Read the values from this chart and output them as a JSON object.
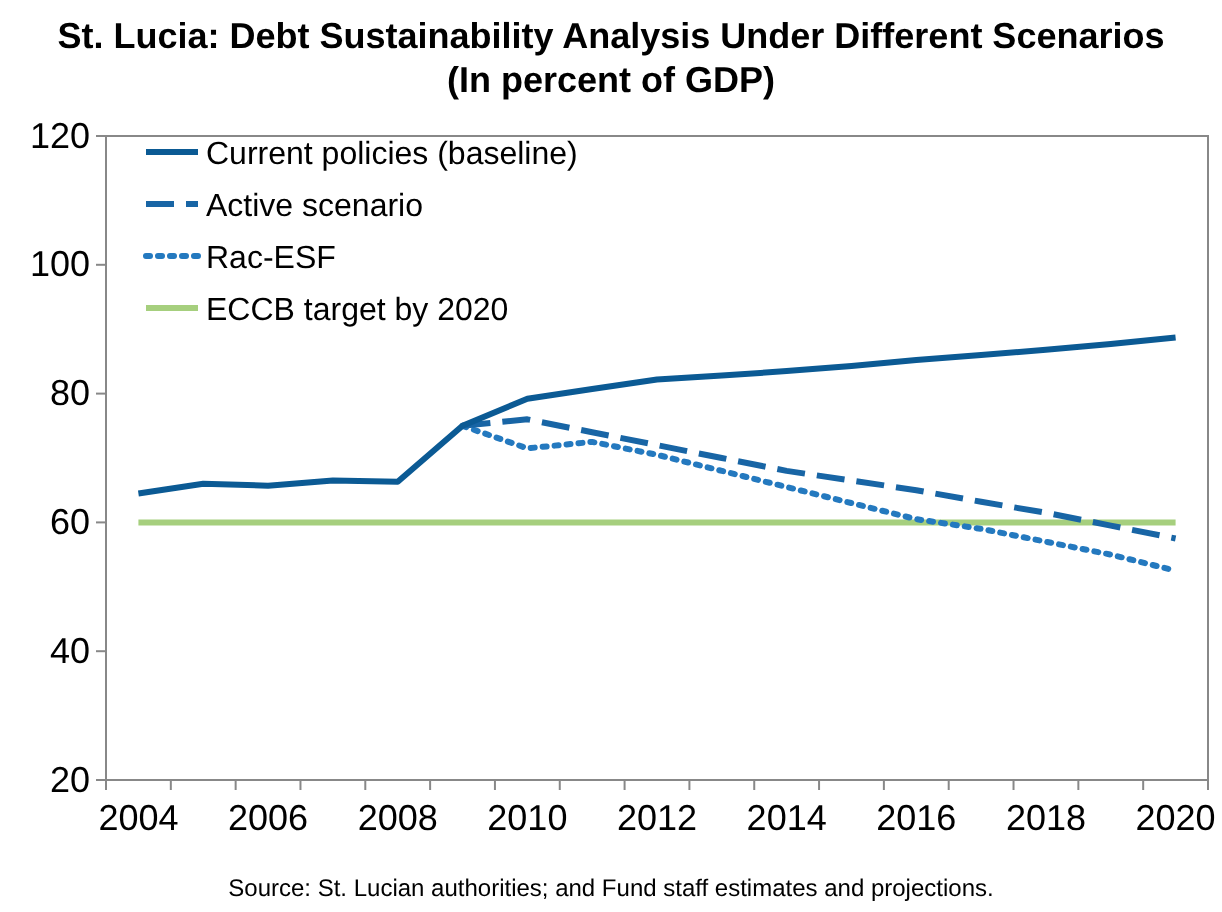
{
  "chart_data": {
    "type": "line",
    "title": "St. Lucia: Debt Sustainability Analysis Under Different Scenarios",
    "subtitle": "(In percent of GDP)",
    "categories": [
      "2004",
      null,
      "2006",
      null,
      "2008",
      null,
      "2010",
      null,
      "2012",
      null,
      "2014",
      null,
      "2016",
      null,
      "2018",
      null,
      "2020"
    ],
    "series": [
      {
        "name": "Current policies (baseline)",
        "color": "#0b5a94",
        "line_style": "solid",
        "values": [
          64.5,
          66,
          65.7,
          66.5,
          66.3,
          75,
          79.2,
          80.7,
          82.2,
          82.8,
          83.5,
          84.3,
          85.2,
          86,
          86.8,
          87.7,
          88.7
        ]
      },
      {
        "name": "Active scenario",
        "color": "#1865a5",
        "line_style": "dashed",
        "values": [
          null,
          null,
          null,
          null,
          null,
          75,
          76,
          74,
          72,
          70,
          68,
          66.5,
          65,
          63.2,
          61.5,
          59.5,
          57.5
        ]
      },
      {
        "name": "Rac-ESF",
        "color": "#2479bf",
        "line_style": "dotted",
        "values": [
          null,
          null,
          null,
          null,
          null,
          75,
          71.5,
          72.5,
          70.5,
          68,
          65.5,
          63,
          60.5,
          59,
          57,
          55,
          52.5
        ]
      },
      {
        "name": "ECCB target by 2020",
        "color": "#a6cf7e",
        "line_style": "solid",
        "values": [
          60,
          60,
          60,
          60,
          60,
          60,
          60,
          60,
          60,
          60,
          60,
          60,
          60,
          60,
          60,
          60,
          60
        ]
      }
    ],
    "ylim": [
      20,
      120
    ],
    "yticks": [
      20,
      40,
      60,
      80,
      100,
      120
    ],
    "grid": false,
    "legend": "top left",
    "marker": "none",
    "annotations": [
      "Source: St. Lucian authorities; and Fund staff estimates and projections."
    ]
  }
}
